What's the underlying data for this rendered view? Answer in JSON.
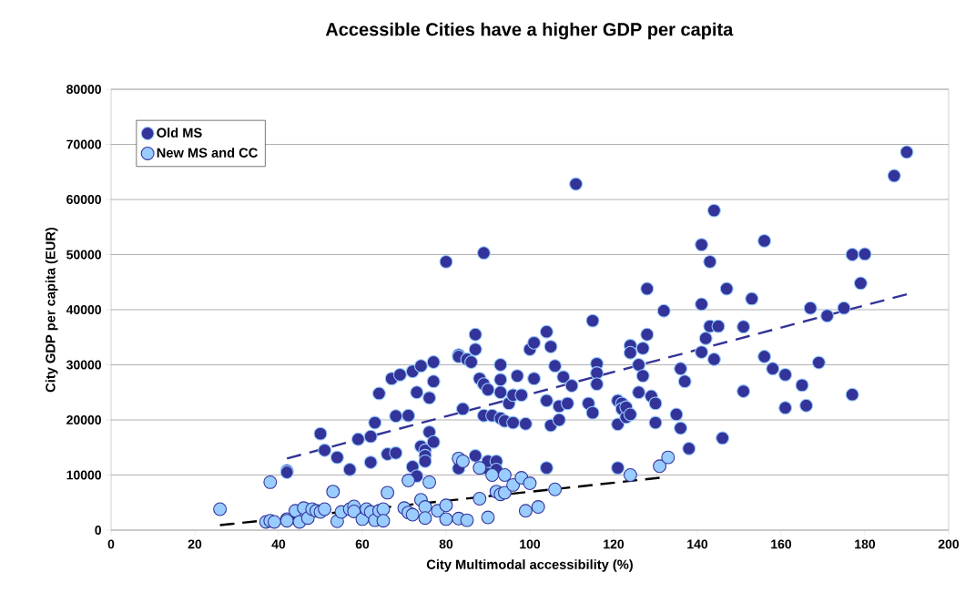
{
  "chart_data": {
    "type": "scatter",
    "title": "Accessible Cities have a higher GDP per capita",
    "xlabel": "City Multimodal accessibility (%)",
    "ylabel": "City GDP per capita (EUR)",
    "xlim": [
      0,
      200
    ],
    "ylim": [
      0,
      80000
    ],
    "xticks": [
      0,
      20,
      40,
      60,
      80,
      100,
      120,
      140,
      160,
      180,
      200
    ],
    "yticks": [
      0,
      10000,
      20000,
      30000,
      40000,
      50000,
      60000,
      70000,
      80000
    ],
    "grid": "y",
    "legend": "top left",
    "series": [
      {
        "name": "Old MS",
        "color": "#333399",
        "marker": "circle",
        "x": [
          42,
          42,
          50,
          51,
          54,
          57,
          59,
          62,
          62,
          63,
          64,
          66,
          67,
          68,
          68,
          69,
          71,
          72,
          72,
          73,
          73,
          74,
          74,
          75,
          75,
          75,
          76,
          76,
          77,
          77,
          77,
          80,
          83,
          83,
          83,
          83,
          84,
          85,
          86,
          87,
          87,
          87,
          88,
          89,
          89,
          89,
          89,
          90,
          90,
          91,
          92,
          92,
          93,
          93,
          93,
          93,
          94,
          95,
          96,
          96,
          97,
          98,
          99,
          100,
          101,
          101,
          104,
          104,
          104,
          105,
          105,
          106,
          107,
          107,
          108,
          109,
          110,
          111,
          114,
          115,
          115,
          116,
          116,
          116,
          121,
          121,
          121,
          122,
          122,
          123,
          123,
          124,
          124,
          124,
          126,
          126,
          127,
          127,
          128,
          128,
          129,
          130,
          130,
          132,
          135,
          136,
          136,
          137,
          138,
          141,
          141,
          141,
          142,
          143,
          143,
          144,
          144,
          145,
          147,
          146,
          151,
          151,
          153,
          156,
          156,
          158,
          161,
          161,
          165,
          166,
          167,
          169,
          171,
          175,
          177,
          177,
          179,
          180,
          187,
          190
        ],
        "values": [
          10800,
          10500,
          17500,
          14500,
          13200,
          11000,
          16500,
          17000,
          12300,
          19500,
          24800,
          13800,
          27500,
          20700,
          14000,
          28200,
          20800,
          28800,
          11500,
          25000,
          9800,
          15200,
          29800,
          14500,
          13500,
          12500,
          24000,
          17800,
          27000,
          30500,
          16000,
          48700,
          31800,
          31500,
          13000,
          11200,
          22000,
          31000,
          30500,
          35500,
          32800,
          13500,
          27500,
          50300,
          26500,
          20800,
          11300,
          12500,
          25500,
          20800,
          12500,
          11000,
          30000,
          27300,
          25000,
          20300,
          19800,
          23000,
          24500,
          19500,
          28000,
          24500,
          19300,
          32800,
          34000,
          27500,
          36000,
          11300,
          23500,
          33300,
          19000,
          29800,
          22500,
          20000,
          27800,
          23000,
          26200,
          62800,
          23000,
          21300,
          38000,
          30200,
          28500,
          26500,
          23500,
          19200,
          11300,
          23000,
          22000,
          20500,
          22300,
          33500,
          32200,
          21000,
          30000,
          25000,
          33000,
          28000,
          43800,
          35500,
          24300,
          23000,
          19500,
          39800,
          21000,
          29300,
          18500,
          27000,
          14800,
          51800,
          41000,
          32300,
          34800,
          48700,
          37000,
          58000,
          31000,
          37000,
          43800,
          16700,
          36900,
          25200,
          42000,
          52500,
          31500,
          29300,
          28200,
          22200,
          26300,
          22600,
          40300,
          30400,
          38900,
          40300,
          50000,
          24600,
          44800,
          50100,
          64300,
          68600
        ]
      },
      {
        "name": "New MS and CC",
        "color": "#99ccff",
        "marker": "circle",
        "x": [
          26,
          37,
          38,
          38,
          39,
          42,
          42,
          44,
          45,
          46,
          47,
          48,
          49,
          50,
          51,
          53,
          54,
          55,
          57,
          58,
          58,
          60,
          61,
          62,
          63,
          64,
          65,
          65,
          66,
          70,
          71,
          71,
          72,
          74,
          75,
          75,
          76,
          78,
          80,
          80,
          83,
          83,
          84,
          85,
          88,
          88,
          90,
          91,
          92,
          93,
          94,
          94,
          96,
          98,
          99,
          100,
          102,
          106,
          124,
          131,
          133
        ],
        "values": [
          3800,
          1500,
          8700,
          1700,
          1500,
          2000,
          1700,
          3500,
          1500,
          4000,
          2200,
          3800,
          3500,
          3300,
          3800,
          7000,
          1600,
          3300,
          3800,
          4300,
          3400,
          2000,
          3800,
          3300,
          1800,
          3500,
          3800,
          1700,
          6800,
          4000,
          9000,
          3200,
          2800,
          5500,
          4200,
          2200,
          8700,
          3500,
          4500,
          2000,
          13000,
          2100,
          12500,
          1800,
          5700,
          11300,
          2300,
          10000,
          7000,
          6500,
          10000,
          6800,
          8200,
          9500,
          3500,
          8500,
          4200,
          7400,
          10000,
          11600,
          13200
        ]
      },
      {
        "type": "line",
        "marker": "none",
        "line_style": "dashed",
        "color": "#333399",
        "x": [
          42,
          190
        ],
        "values": [
          13000,
          42800
        ]
      },
      {
        "type": "line",
        "marker": "none",
        "line_style": "dashed",
        "color": "#000000",
        "x": [
          26,
          131
        ],
        "values": [
          900,
          9500
        ]
      }
    ]
  }
}
